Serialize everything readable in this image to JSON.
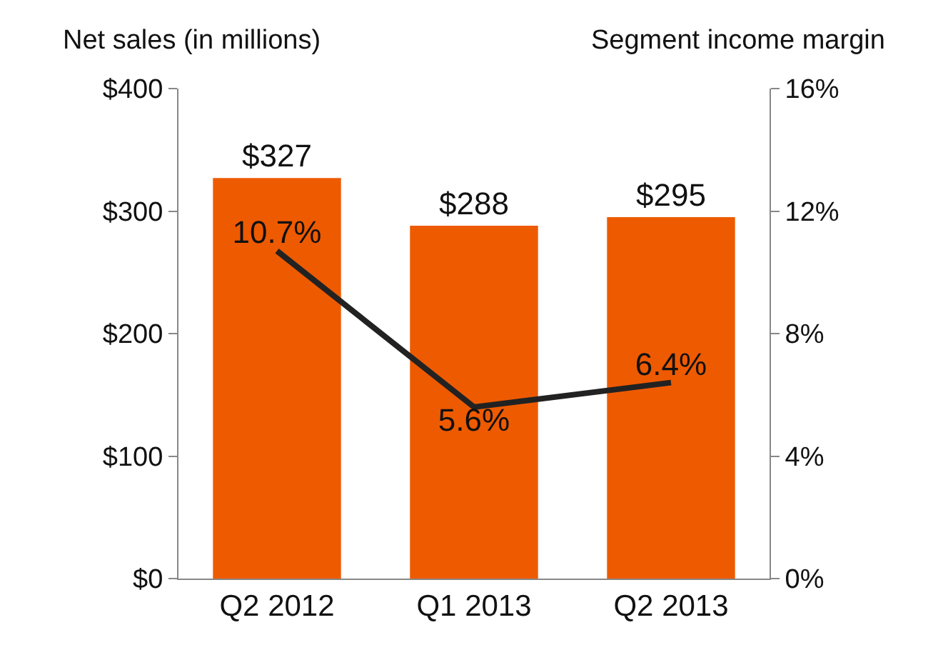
{
  "chart_data": {
    "type": "bar",
    "ylabel": "Net sales (in millions)",
    "y2label": "Segment income margin",
    "categories": [
      "Q2 2012",
      "Q1 2013",
      "Q2 2013"
    ],
    "series": [
      {
        "color": "#ee5a00",
        "values": [
          327,
          288,
          295
        ],
        "value_labels": [
          "$327",
          "$288",
          "$295"
        ]
      },
      {
        "type": "line",
        "axis": "y2",
        "color": "#222222",
        "values": [
          10.7,
          5.6,
          6.4
        ],
        "value_labels": [
          "10.7%",
          "5.6%",
          "6.4%"
        ]
      }
    ],
    "ylim": [
      0,
      400
    ],
    "yticks": [
      {
        "value": 0,
        "label": "$0"
      },
      {
        "value": 100,
        "label": "$100"
      },
      {
        "value": 200,
        "label": "$200"
      },
      {
        "value": 300,
        "label": "$300"
      },
      {
        "value": 400,
        "label": "$400"
      }
    ],
    "y2lim": [
      0,
      16
    ],
    "y2ticks": [
      {
        "value": 0,
        "label": "0%"
      },
      {
        "value": 4,
        "label": "4%"
      },
      {
        "value": 8,
        "label": "8%"
      },
      {
        "value": 12,
        "label": "12%"
      },
      {
        "value": 16,
        "label": "16%"
      }
    ],
    "grid": false,
    "legend": false,
    "marker": "none",
    "line_style": "solid"
  }
}
